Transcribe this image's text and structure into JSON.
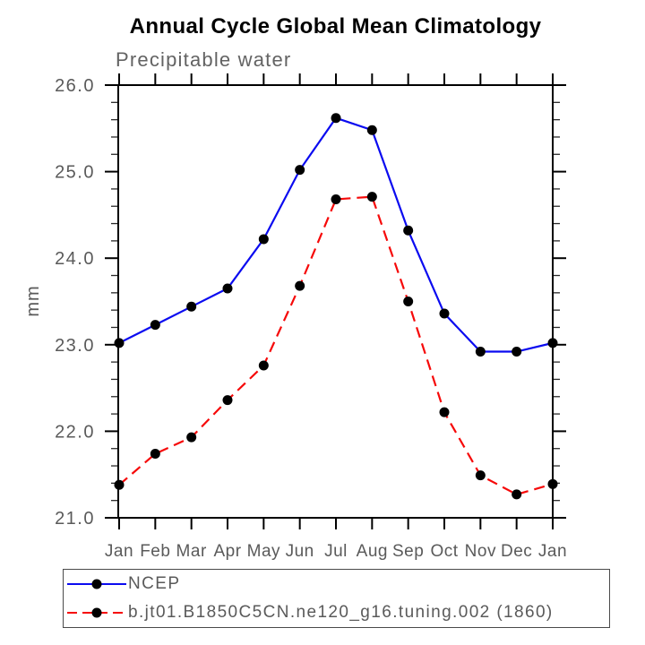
{
  "chart_data": {
    "type": "line",
    "title": "Annual Cycle Global Mean Climatology",
    "subtitle": "Precipitable water",
    "ylabel": "mm",
    "xlabel": "",
    "categories": [
      "Jan",
      "Feb",
      "Mar",
      "Apr",
      "May",
      "Jun",
      "Jul",
      "Aug",
      "Sep",
      "Oct",
      "Nov",
      "Dec",
      "Jan"
    ],
    "ylim": [
      21.0,
      26.0
    ],
    "ytick_major": [
      21.0,
      22.0,
      23.0,
      24.0,
      25.0,
      26.0
    ],
    "ytick_labels": [
      "21.0",
      "22.0",
      "23.0",
      "24.0",
      "25.0",
      "26.0"
    ],
    "y_minor_step": 0.2,
    "grid": false,
    "legend_position": "bottom-left-box",
    "series": [
      {
        "name": "NCEP",
        "line_color": "#0b0bf0",
        "line_style": "solid",
        "marker": "circle",
        "marker_color": "#000000",
        "values": [
          23.02,
          23.23,
          23.44,
          23.65,
          24.22,
          25.02,
          25.62,
          25.48,
          24.32,
          23.36,
          22.92,
          22.92,
          23.02
        ]
      },
      {
        "name": "b.jt01.B1850C5CN.ne120_g16.tuning.002 (1860)",
        "line_color": "#f60909",
        "line_style": "dashed",
        "marker": "circle",
        "marker_color": "#000000",
        "values": [
          21.38,
          21.74,
          21.93,
          22.36,
          22.76,
          23.68,
          24.68,
          24.71,
          23.5,
          22.22,
          21.49,
          21.27,
          21.39
        ]
      }
    ],
    "axis_color": "#000000",
    "tick_label_color": "#5a5a5a"
  }
}
